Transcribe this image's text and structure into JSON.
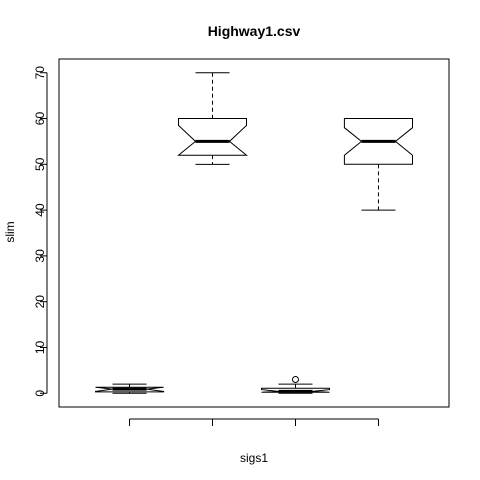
{
  "chart_data": {
    "type": "boxplot",
    "title": "Highway1.csv",
    "xlabel": "sigs1",
    "ylabel": "slim",
    "ylim": [
      -3,
      73
    ],
    "yticks": [
      0,
      10,
      20,
      30,
      40,
      50,
      60,
      70
    ],
    "xticks_labeled": false,
    "notched": true,
    "grid": false,
    "legend": "none",
    "boxes": [
      {
        "whisker_low": 0,
        "q1": 0.3,
        "median": 0.9,
        "q3": 1.3,
        "whisker_high": 2,
        "notch_low": 0.4,
        "notch_high": 1.3,
        "outliers": []
      },
      {
        "whisker_low": 50,
        "q1": 52,
        "median": 55,
        "q3": 60,
        "whisker_high": 70,
        "notch_low": 52,
        "notch_high": 58.5,
        "outliers": []
      },
      {
        "whisker_low": 0,
        "q1": 0.2,
        "median": 0.4,
        "q3": 1.1,
        "whisker_high": 2,
        "notch_low": 0.2,
        "notch_high": 0.8,
        "outliers": [
          3
        ]
      },
      {
        "whisker_low": 40,
        "q1": 50,
        "median": 55,
        "q3": 60,
        "whisker_high": 60,
        "notch_low": 52,
        "notch_high": 58,
        "outliers": []
      }
    ]
  }
}
